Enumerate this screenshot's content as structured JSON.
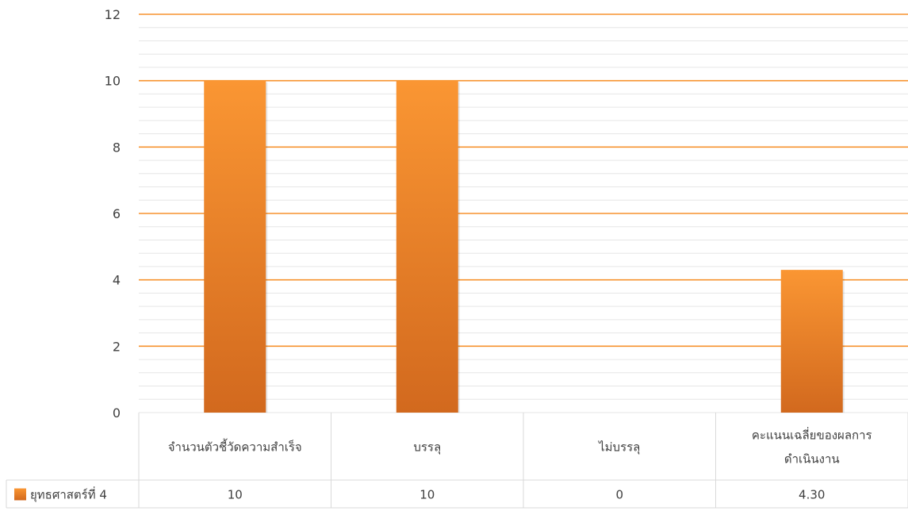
{
  "chart_data": {
    "type": "bar",
    "title": "",
    "xlabel": "",
    "ylabel": "",
    "categories": [
      [
        "จำนวนตัวชี้วัดความสำเร็จ"
      ],
      [
        "บรรลุ"
      ],
      [
        "ไม่บรรลุ"
      ],
      [
        "คะแนนเฉลี่ยของผลการ",
        "ดำเนินงาน"
      ]
    ],
    "series": [
      {
        "name": "ยุทธศาสตร์ที่ 4",
        "values": [
          10,
          10,
          0,
          4.3
        ],
        "value_labels": [
          "10",
          "10",
          "0",
          "4.30"
        ],
        "color": "#F7922E"
      }
    ],
    "ylim": [
      0,
      12
    ],
    "y_ticks": [
      "0",
      "2",
      "4",
      "6",
      "8",
      "10",
      "12"
    ],
    "major_grid": true,
    "minor_grid": true,
    "grid_color": "#F7922E",
    "minor_grid_color": "#E6E6E6",
    "bar_gradient": [
      "#FA9633",
      "#D2691E"
    ],
    "data_table": true,
    "legend": "in-data-table"
  }
}
